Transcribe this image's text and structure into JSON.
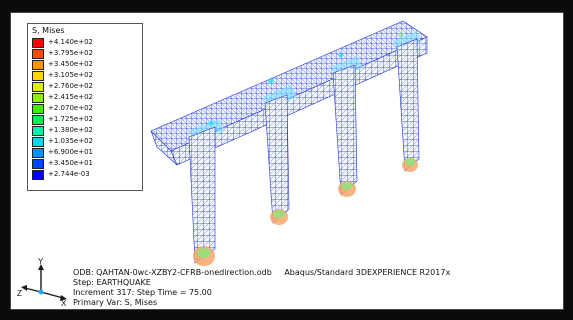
{
  "legend": {
    "title": "S, Mises",
    "entries": [
      {
        "value": "+4.140e+02",
        "color": "#ff0000"
      },
      {
        "value": "+3.795e+02",
        "color": "#ff4a00"
      },
      {
        "value": "+3.450e+02",
        "color": "#ff9400"
      },
      {
        "value": "+3.105e+02",
        "color": "#ffd400"
      },
      {
        "value": "+2.760e+02",
        "color": "#ddf000"
      },
      {
        "value": "+2.415e+02",
        "color": "#8ef000"
      },
      {
        "value": "+2.070e+02",
        "color": "#3ff000"
      },
      {
        "value": "+1.725e+02",
        "color": "#00f05a"
      },
      {
        "value": "+1.380e+02",
        "color": "#00f0b0"
      },
      {
        "value": "+1.035e+02",
        "color": "#00d8f0"
      },
      {
        "value": "+6.900e+01",
        "color": "#0090ff"
      },
      {
        "value": "+3.450e+01",
        "color": "#0044ff"
      },
      {
        "value": "+2.744e-03",
        "color": "#0000ff"
      }
    ]
  },
  "info": {
    "odb_label": "ODB: QAHTAN-0wc-XZBY2-CFRB-onedirection.odb",
    "solver": "Abaqus/Standard 3DEXPERIENCE R2017x",
    "step": "Step: EARTHQUAKE",
    "increment": "Increment   317: Step Time =    75.00",
    "primary_var": "Primary Var: S, Mises"
  },
  "triad": {
    "x": "X",
    "y": "Y",
    "z": "Z"
  }
}
